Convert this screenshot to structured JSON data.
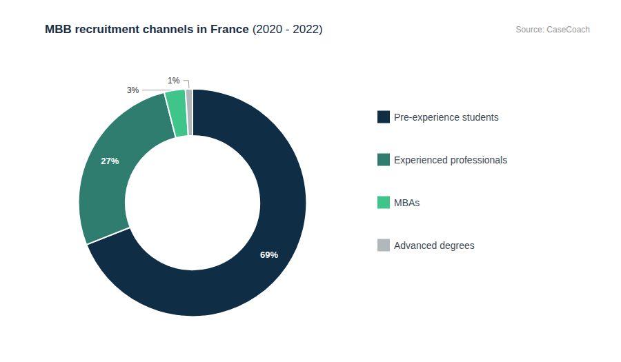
{
  "chart_data": {
    "type": "pie",
    "title": "MBB recruitment channels in France",
    "subtitle": "(2020 - 2022)",
    "annotations": [
      "Source: CaseCoach"
    ],
    "categories": [
      "Pre-experience students",
      "Experienced professionals",
      "MBAs",
      "Advanced degrees"
    ],
    "values": [
      69,
      27,
      3,
      1
    ],
    "value_labels": [
      "69%",
      "27%",
      "3%",
      "1%"
    ],
    "data_labels": true,
    "colors": [
      "#0f2d45",
      "#2e7d6e",
      "#3fc48a",
      "#b0b8bc"
    ],
    "legend": "right"
  }
}
